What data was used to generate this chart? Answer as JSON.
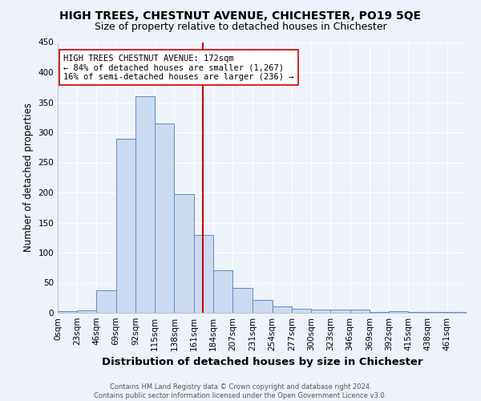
{
  "title": "HIGH TREES, CHESTNUT AVENUE, CHICHESTER, PO19 5QE",
  "subtitle": "Size of property relative to detached houses in Chichester",
  "xlabel": "Distribution of detached houses by size in Chichester",
  "ylabel": "Number of detached properties",
  "bar_labels": [
    "0sqm",
    "23sqm",
    "46sqm",
    "69sqm",
    "92sqm",
    "115sqm",
    "138sqm",
    "161sqm",
    "184sqm",
    "207sqm",
    "231sqm",
    "254sqm",
    "277sqm",
    "300sqm",
    "323sqm",
    "346sqm",
    "369sqm",
    "392sqm",
    "415sqm",
    "438sqm",
    "461sqm"
  ],
  "bar_values": [
    3,
    4,
    37,
    290,
    360,
    315,
    197,
    130,
    71,
    42,
    21,
    11,
    7,
    5,
    5,
    6,
    2,
    3,
    2,
    2,
    2
  ],
  "bar_edges": [
    0,
    23,
    46,
    69,
    92,
    115,
    138,
    161,
    184,
    207,
    231,
    254,
    277,
    300,
    323,
    346,
    369,
    392,
    415,
    438,
    461,
    484
  ],
  "bar_color": "#ccdaf0",
  "bar_edge_color": "#5b8cc8",
  "vline_x": 172,
  "vline_color": "#cc0000",
  "annotation_text": "HIGH TREES CHESTNUT AVENUE: 172sqm\n← 84% of detached houses are smaller (1,267)\n16% of semi-detached houses are larger (236) →",
  "annotation_box_color": "#ffffff",
  "annotation_box_edge": "#cc0000",
  "ylim": [
    0,
    450
  ],
  "yticks": [
    0,
    50,
    100,
    150,
    200,
    250,
    300,
    350,
    400,
    450
  ],
  "footer": "Contains HM Land Registry data © Crown copyright and database right 2024.\nContains public sector information licensed under the Open Government Licence v3.0.",
  "bg_color": "#eef2fa",
  "grid_color": "#ffffff",
  "title_fontsize": 10,
  "subtitle_fontsize": 9,
  "xlabel_fontsize": 9.5,
  "ylabel_fontsize": 8.5,
  "tick_fontsize": 7.5,
  "footer_fontsize": 6,
  "annotation_fontsize": 7.5
}
